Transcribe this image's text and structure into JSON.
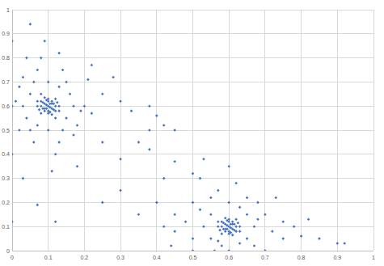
{
  "chart_data": {
    "type": "scatter",
    "x": [
      0.1,
      0.09,
      0.11,
      0.1,
      0.1,
      0.08,
      0.12,
      0.09,
      0.11,
      0.095,
      0.105,
      0.085,
      0.115,
      0.09,
      0.11,
      0.08,
      0.12,
      0.1,
      0.1,
      0.07,
      0.13,
      0.085,
      0.115,
      0.095,
      0.105,
      0.075,
      0.125,
      0.09,
      0.11,
      0.07,
      0.13,
      0.105,
      0.095,
      0.08,
      0.12,
      0.05,
      0.15,
      0.06,
      0.14,
      0.03,
      0.17,
      0.1,
      0.1,
      0.02,
      0.18,
      0.04,
      0.16,
      0.07,
      0.13,
      0.01,
      0.19,
      0.05,
      0.15,
      0.08,
      0.12,
      0,
      0.2,
      0.03,
      0.17,
      0.06,
      0.14,
      0.09,
      0.11,
      0.02,
      0.22,
      0.25,
      0.05,
      0,
      0,
      0.03,
      0.12,
      0.21,
      0.28,
      0.25,
      0.18,
      0.07,
      0,
      0.3,
      0.22,
      0.13,
      0.04,
      0.08,
      0.12,
      0.07,
      0.13,
      0.33,
      0.38,
      0.4,
      0.35,
      0.45,
      0.38,
      0.3,
      0.42,
      0.45,
      0.5,
      0.25,
      0.3,
      0.35,
      0.4,
      0.38,
      0.42,
      0.6,
      0.59,
      0.61,
      0.6,
      0.6,
      0.58,
      0.62,
      0.59,
      0.61,
      0.595,
      0.605,
      0.585,
      0.615,
      0.59,
      0.61,
      0.58,
      0.62,
      0.6,
      0.6,
      0.57,
      0.63,
      0.585,
      0.615,
      0.595,
      0.605,
      0.575,
      0.625,
      0.59,
      0.61,
      0.57,
      0.63,
      0.605,
      0.595,
      0.58,
      0.62,
      0.55,
      0.65,
      0.5,
      0.7,
      0.53,
      0.67,
      0.6,
      0.6,
      0.48,
      0.72,
      0.55,
      0.65,
      0.57,
      0.63,
      0.45,
      0.75,
      0.5,
      0.7,
      0.62,
      0.58,
      0.52,
      0.68,
      0.45,
      0.78,
      0.8,
      0.85,
      0.9,
      0.92,
      0.82,
      0.73,
      0.53,
      0.6,
      0.55,
      0.65,
      0.42,
      0.44,
      0.5,
      0.56,
      0.67,
      0.75,
      0.63,
      0.57,
      0.52,
      0.68
    ],
    "series": [
      {
        "color": "#4472c4",
        "marker": "diamond",
        "values": [
          0.6,
          0.61,
          0.59,
          0.62,
          0.58,
          0.6,
          0.6,
          0.59,
          0.61,
          0.605,
          0.595,
          0.615,
          0.585,
          0.58,
          0.62,
          0.62,
          0.58,
          0.63,
          0.57,
          0.6,
          0.6,
          0.59,
          0.61,
          0.625,
          0.575,
          0.585,
          0.615,
          0.635,
          0.565,
          0.62,
          0.58,
          0.61,
          0.59,
          0.57,
          0.63,
          0.65,
          0.55,
          0.7,
          0.5,
          0.6,
          0.6,
          0.7,
          0.5,
          0.68,
          0.52,
          0.55,
          0.65,
          0.75,
          0.45,
          0.62,
          0.58,
          0.5,
          0.7,
          0.8,
          0.4,
          0.6,
          0.6,
          0.72,
          0.48,
          0.45,
          0.75,
          0.87,
          0.33,
          0.5,
          0.57,
          0.65,
          0.94,
          0.87,
          0.4,
          0.3,
          0.12,
          0.71,
          0.72,
          0.45,
          0.35,
          0.19,
          0.12,
          0.62,
          0.77,
          0.82,
          0.8,
          0.65,
          0.55,
          0.52,
          0.68,
          0.58,
          0.5,
          0.56,
          0.45,
          0.5,
          0.42,
          0.38,
          0.3,
          0.37,
          0.32,
          0.2,
          0.25,
          0.15,
          0.2,
          0.6,
          0.52,
          0.1,
          0.11,
          0.09,
          0.12,
          0.08,
          0.1,
          0.1,
          0.09,
          0.11,
          0.105,
          0.095,
          0.115,
          0.085,
          0.08,
          0.12,
          0.12,
          0.08,
          0.13,
          0.07,
          0.1,
          0.1,
          0.09,
          0.11,
          0.125,
          0.075,
          0.085,
          0.115,
          0.135,
          0.065,
          0.12,
          0.08,
          0.11,
          0.09,
          0.07,
          0.13,
          0.15,
          0.05,
          0.2,
          0,
          0.1,
          0.1,
          0.2,
          0,
          0.12,
          0.08,
          0.05,
          0.15,
          0.25,
          0.03,
          0.15,
          0.05,
          0.05,
          0.15,
          0.28,
          0.02,
          0.3,
          0.2,
          0.08,
          0.1,
          0.06,
          0.05,
          0.03,
          0.03,
          0.13,
          0.22,
          0.38,
          0.35,
          0.22,
          0.22,
          0.1,
          0.02,
          0,
          0,
          0.02,
          0.12,
          0.18,
          0.04,
          0.17,
          0.13
        ]
      }
    ],
    "xlim": [
      0,
      1
    ],
    "ylim": [
      0,
      1
    ],
    "xticks": [
      0,
      0.1,
      0.2,
      0.3,
      0.4,
      0.5,
      0.6,
      0.7,
      0.8,
      0.9,
      1
    ],
    "yticks": [
      0,
      0.1,
      0.2,
      0.3,
      0.4,
      0.5,
      0.6,
      0.7,
      0.8,
      0.9,
      1
    ],
    "grid": true
  }
}
